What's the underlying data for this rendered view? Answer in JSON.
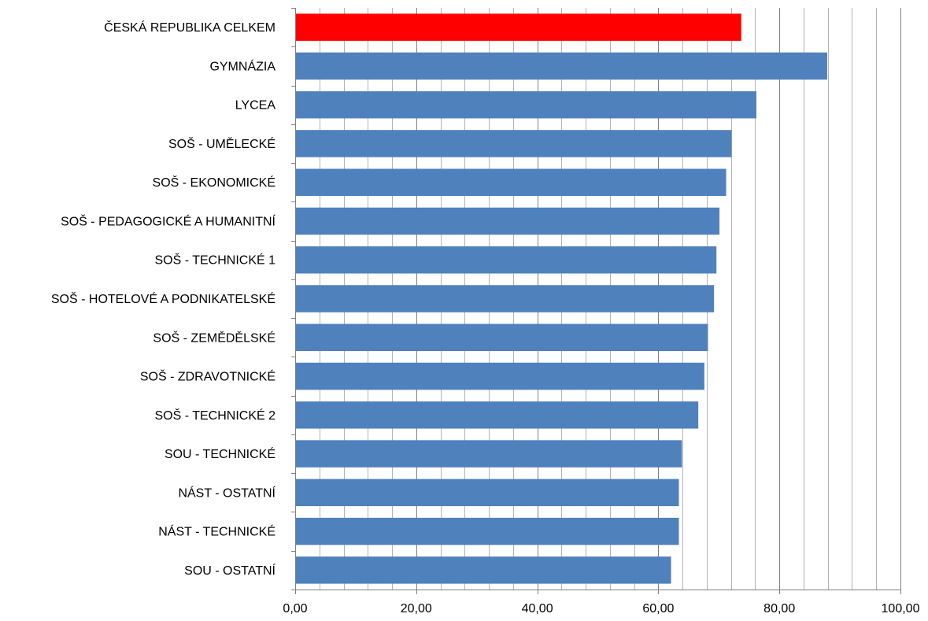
{
  "chart_data": {
    "type": "bar",
    "orientation": "horizontal",
    "categories": [
      "ČESKÁ REPUBLIKA CELKEM",
      "GYMNÁZIA",
      "LYCEA",
      "SOŠ - UMĚLECKÉ",
      "SOŠ - EKONOMICKÉ",
      "SOŠ - PEDAGOGICKÉ A HUMANITNÍ",
      "SOŠ - TECHNICKÉ 1",
      "SOŠ - HOTELOVÉ A PODNIKATELSKÉ",
      "SOŠ - ZEMĚDĚLSKÉ",
      "SOŠ - ZDRAVOTNICKÉ",
      "SOŠ - TECHNICKÉ 2",
      "SOU - TECHNICKÉ",
      "NÁST - OSTATNÍ",
      "NÁST - TECHNICKÉ",
      "SOU - OSTATNÍ"
    ],
    "values": [
      73.7,
      87.9,
      76.2,
      72.1,
      71.2,
      70.1,
      69.6,
      69.2,
      68.2,
      67.6,
      66.6,
      63.9,
      63.4,
      63.4,
      62.1
    ],
    "bar_colors": [
      "#ff0000",
      "#4f81bd",
      "#4f81bd",
      "#4f81bd",
      "#4f81bd",
      "#4f81bd",
      "#4f81bd",
      "#4f81bd",
      "#4f81bd",
      "#4f81bd",
      "#4f81bd",
      "#4f81bd",
      "#4f81bd",
      "#4f81bd",
      "#4f81bd"
    ],
    "xlim": [
      0,
      100
    ],
    "x_ticks": [
      "0,00",
      "20,00",
      "40,00",
      "60,00",
      "80,00",
      "100,00"
    ],
    "minor_grid_step": 4,
    "grid": true,
    "title": "",
    "xlabel": "",
    "ylabel": ""
  }
}
